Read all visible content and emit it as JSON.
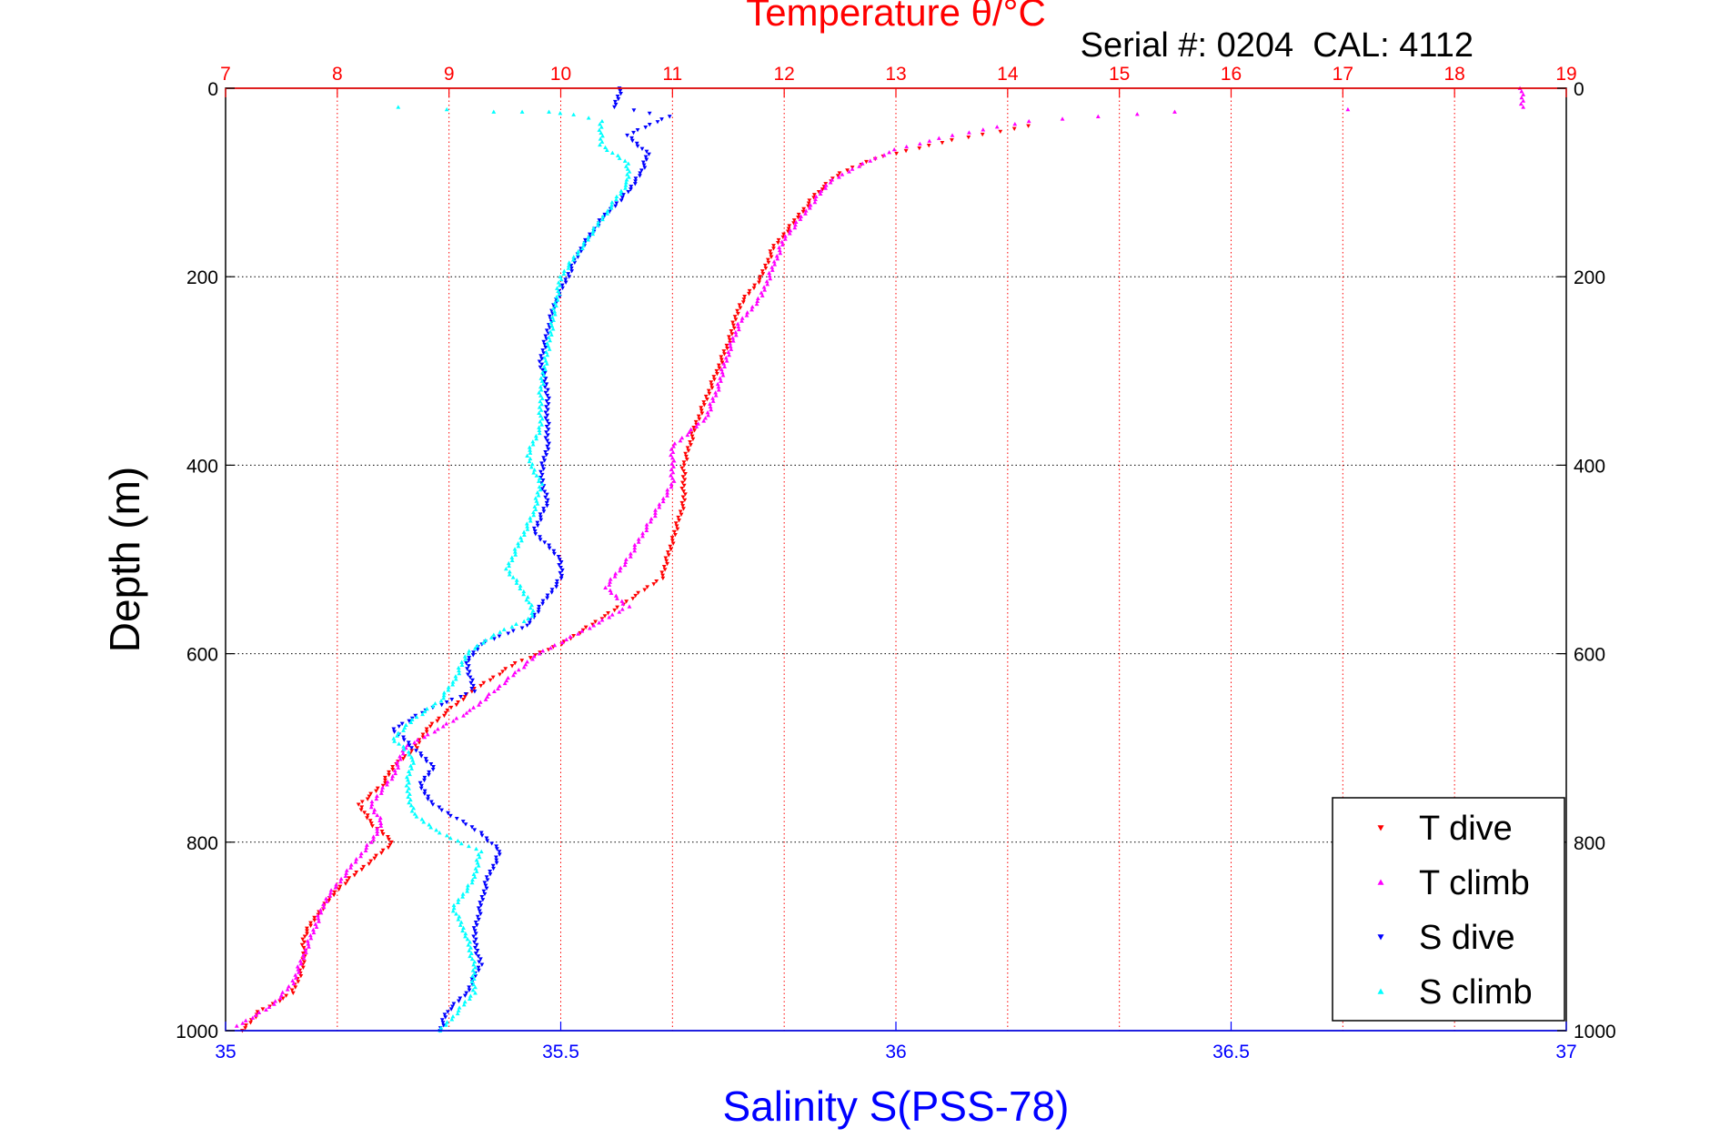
{
  "chart_data": {
    "type": "scatter",
    "title": "Temperature θ/°C",
    "annotation": "Serial #: 0204  CAL: 4112",
    "ylabel": "Depth (m)",
    "xlabel": "Salinity S(PSS-78)",
    "top_axis_label": "Temperature θ/°C",
    "ylim": [
      1000,
      0
    ],
    "y_axis_reversed": true,
    "xlim_salinity": [
      35,
      37
    ],
    "xlim_temperature": [
      7,
      19
    ],
    "y_ticks": [
      "0",
      "200",
      "400",
      "600",
      "800",
      "1000"
    ],
    "x_ticks_salinity": [
      "35",
      "35.5",
      "36",
      "36.5",
      "37"
    ],
    "x_ticks_temperature": [
      "7",
      "8",
      "9",
      "10",
      "11",
      "12",
      "13",
      "14",
      "15",
      "16",
      "17",
      "18",
      "19"
    ],
    "grid": true,
    "legend_position": "bottom-right",
    "colors": {
      "temperature_axis": "#ff0000",
      "salinity_axis": "#0000ff",
      "t_dive": "#ff0000",
      "t_climb": "#ff00ff",
      "s_dive": "#0000ff",
      "s_climb": "#00ffff"
    },
    "series": [
      {
        "name": "T dive",
        "axis": "temperature",
        "marker": "triangle-down",
        "color": "#ff0000",
        "points": [
          [
            14.2,
            40
          ],
          [
            13.5,
            55
          ],
          [
            12.8,
            75
          ],
          [
            12.5,
            90
          ],
          [
            12.3,
            110
          ],
          [
            12.1,
            140
          ],
          [
            11.9,
            170
          ],
          [
            11.8,
            200
          ],
          [
            11.6,
            230
          ],
          [
            11.5,
            270
          ],
          [
            11.4,
            300
          ],
          [
            11.3,
            330
          ],
          [
            11.2,
            360
          ],
          [
            11.1,
            400
          ],
          [
            11.1,
            440
          ],
          [
            11.0,
            480
          ],
          [
            10.9,
            520
          ],
          [
            10.4,
            560
          ],
          [
            10.0,
            590
          ],
          [
            9.6,
            610
          ],
          [
            9.2,
            640
          ],
          [
            9.0,
            660
          ],
          [
            8.8,
            680
          ],
          [
            8.7,
            700
          ],
          [
            8.5,
            720
          ],
          [
            8.4,
            740
          ],
          [
            8.2,
            760
          ],
          [
            8.3,
            780
          ],
          [
            8.5,
            800
          ],
          [
            8.3,
            820
          ],
          [
            8.0,
            850
          ],
          [
            7.8,
            880
          ],
          [
            7.7,
            900
          ],
          [
            7.7,
            930
          ],
          [
            7.6,
            960
          ],
          [
            7.3,
            980
          ],
          [
            7.15,
            1000
          ]
        ]
      },
      {
        "name": "T climb",
        "axis": "temperature",
        "marker": "triangle-up",
        "color": "#ff00ff",
        "points": [
          [
            18.6,
            0
          ],
          [
            18.6,
            10
          ],
          [
            18.6,
            20
          ],
          [
            15.5,
            25
          ],
          [
            14.8,
            30
          ],
          [
            14.2,
            35
          ],
          [
            13.5,
            50
          ],
          [
            13.0,
            65
          ],
          [
            12.7,
            80
          ],
          [
            12.4,
            100
          ],
          [
            12.2,
            130
          ],
          [
            12.0,
            160
          ],
          [
            11.9,
            190
          ],
          [
            11.8,
            220
          ],
          [
            11.6,
            250
          ],
          [
            11.5,
            280
          ],
          [
            11.4,
            320
          ],
          [
            11.3,
            350
          ],
          [
            11.0,
            380
          ],
          [
            11.0,
            420
          ],
          [
            10.8,
            460
          ],
          [
            10.6,
            500
          ],
          [
            10.4,
            530
          ],
          [
            10.6,
            550
          ],
          [
            10.3,
            570
          ],
          [
            9.8,
            600
          ],
          [
            9.6,
            620
          ],
          [
            9.4,
            640
          ],
          [
            9.2,
            660
          ],
          [
            8.9,
            680
          ],
          [
            8.6,
            700
          ],
          [
            8.5,
            730
          ],
          [
            8.3,
            760
          ],
          [
            8.4,
            780
          ],
          [
            8.3,
            800
          ],
          [
            8.1,
            830
          ],
          [
            7.9,
            860
          ],
          [
            7.8,
            890
          ],
          [
            7.7,
            920
          ],
          [
            7.6,
            950
          ],
          [
            7.4,
            975
          ],
          [
            7.1,
            995
          ]
        ]
      },
      {
        "name": "S dive",
        "axis": "salinity",
        "marker": "triangle-down",
        "color": "#0000ff",
        "points": [
          [
            35.59,
            0
          ],
          [
            35.58,
            20
          ],
          [
            35.66,
            30
          ],
          [
            35.6,
            50
          ],
          [
            35.63,
            70
          ],
          [
            35.62,
            90
          ],
          [
            35.6,
            110
          ],
          [
            35.56,
            140
          ],
          [
            35.53,
            170
          ],
          [
            35.51,
            200
          ],
          [
            35.49,
            230
          ],
          [
            35.48,
            260
          ],
          [
            35.47,
            290
          ],
          [
            35.48,
            320
          ],
          [
            35.48,
            350
          ],
          [
            35.48,
            380
          ],
          [
            35.47,
            410
          ],
          [
            35.48,
            440
          ],
          [
            35.46,
            470
          ],
          [
            35.5,
            500
          ],
          [
            35.5,
            520
          ],
          [
            35.47,
            550
          ],
          [
            35.45,
            570
          ],
          [
            35.38,
            590
          ],
          [
            35.36,
            610
          ],
          [
            35.37,
            640
          ],
          [
            35.3,
            660
          ],
          [
            35.25,
            680
          ],
          [
            35.28,
            700
          ],
          [
            35.31,
            720
          ],
          [
            35.29,
            740
          ],
          [
            35.31,
            760
          ],
          [
            35.38,
            790
          ],
          [
            35.41,
            810
          ],
          [
            35.39,
            840
          ],
          [
            35.38,
            870
          ],
          [
            35.37,
            900
          ],
          [
            35.38,
            930
          ],
          [
            35.36,
            960
          ],
          [
            35.33,
            980
          ],
          [
            35.32,
            1000
          ]
        ]
      },
      {
        "name": "S climb",
        "axis": "salinity",
        "marker": "triangle-up",
        "color": "#00ffff",
        "points": [
          [
            35.26,
            20
          ],
          [
            35.4,
            25
          ],
          [
            35.48,
            25
          ],
          [
            35.52,
            28
          ],
          [
            35.56,
            35
          ],
          [
            35.56,
            60
          ],
          [
            35.6,
            80
          ],
          [
            35.6,
            100
          ],
          [
            35.57,
            130
          ],
          [
            35.53,
            170
          ],
          [
            35.5,
            200
          ],
          [
            35.49,
            240
          ],
          [
            35.48,
            280
          ],
          [
            35.47,
            320
          ],
          [
            35.47,
            360
          ],
          [
            35.45,
            390
          ],
          [
            35.47,
            420
          ],
          [
            35.46,
            450
          ],
          [
            35.44,
            480
          ],
          [
            35.42,
            510
          ],
          [
            35.45,
            540
          ],
          [
            35.46,
            560
          ],
          [
            35.4,
            580
          ],
          [
            35.36,
            600
          ],
          [
            35.34,
            630
          ],
          [
            35.32,
            650
          ],
          [
            35.28,
            670
          ],
          [
            35.25,
            690
          ],
          [
            35.28,
            710
          ],
          [
            35.27,
            740
          ],
          [
            35.28,
            770
          ],
          [
            35.32,
            790
          ],
          [
            35.38,
            810
          ],
          [
            35.37,
            840
          ],
          [
            35.34,
            870
          ],
          [
            35.36,
            900
          ],
          [
            35.37,
            930
          ],
          [
            35.37,
            960
          ],
          [
            35.34,
            985
          ],
          [
            35.32,
            1000
          ]
        ]
      }
    ]
  }
}
